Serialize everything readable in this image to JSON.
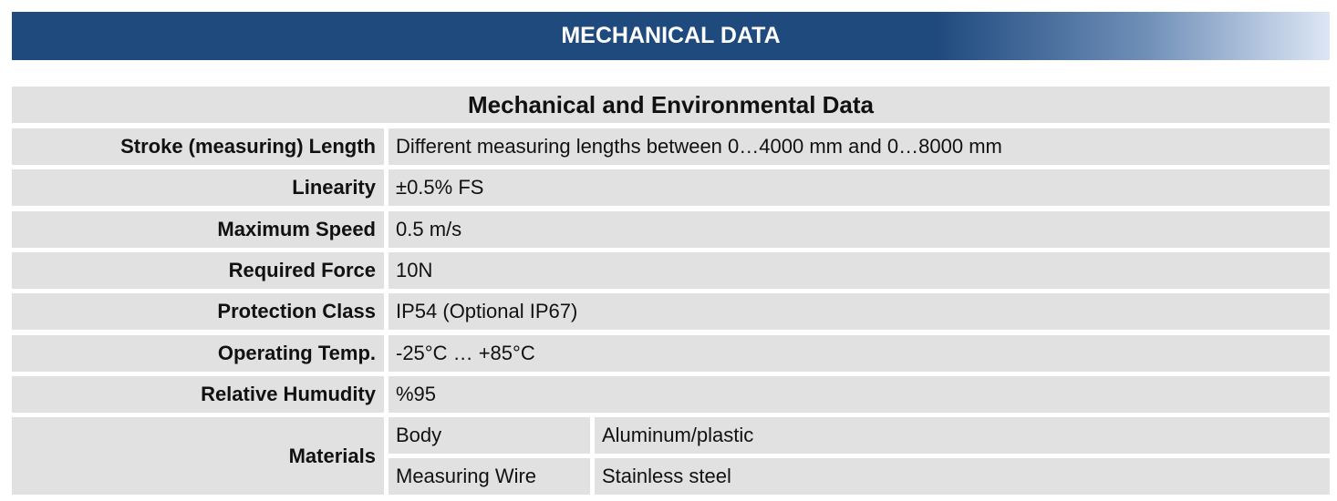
{
  "header": {
    "title": "MECHANICAL DATA"
  },
  "table": {
    "title": "Mechanical and Environmental Data",
    "rows": [
      [
        "Stroke (measuring) Length",
        "Different measuring lengths between 0…4000 mm and 0…8000 mm"
      ],
      [
        "Linearity",
        "±0.5% FS"
      ],
      [
        "Maximum Speed",
        "0.5 m/s"
      ],
      [
        "Required Force",
        "10N"
      ],
      [
        "Protection Class",
        "IP54 (Optional IP67)"
      ],
      [
        "Operating Temp.",
        "-25°C … +85°C"
      ],
      [
        "Relative Humudity",
        "%95"
      ]
    ],
    "materials": {
      "label": "Materials",
      "rows": [
        [
          "Body",
          "Aluminum/plastic"
        ],
        [
          "Measuring Wire",
          "Stainless steel"
        ]
      ]
    }
  }
}
